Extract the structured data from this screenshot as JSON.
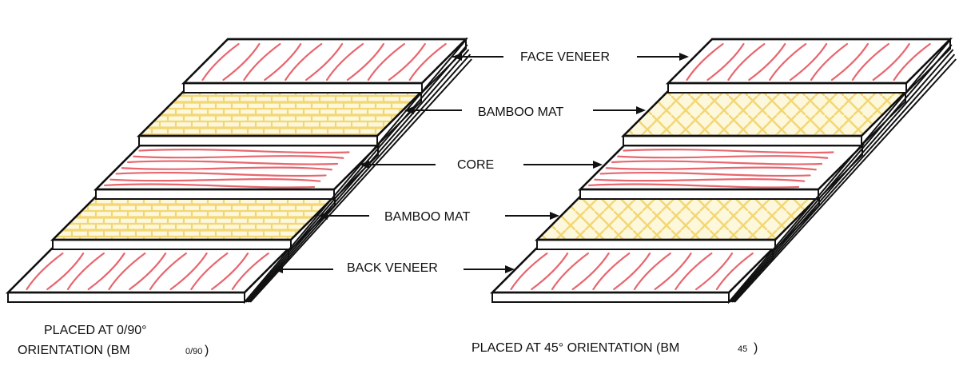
{
  "labels": {
    "face_veneer": "FACE VENEER",
    "bamboo_mat_1": "BAMBOO MAT",
    "core": "CORE",
    "bamboo_mat_2": "BAMBOO MAT",
    "back_veneer": "BACK VENEER"
  },
  "captions": {
    "left_line1": "PLACED AT 0/90°",
    "left_line2": "ORIENTATION (BM",
    "left_sub": "0/90",
    "left_close": ")",
    "right_main": "PLACED AT 45° ORIENTATION (BM",
    "right_sub": "45",
    "right_close": ")"
  },
  "colors": {
    "outline": "#111111",
    "wood_grain": "#e8666e",
    "bamboo": "#f2d773",
    "background": "#ffffff"
  }
}
